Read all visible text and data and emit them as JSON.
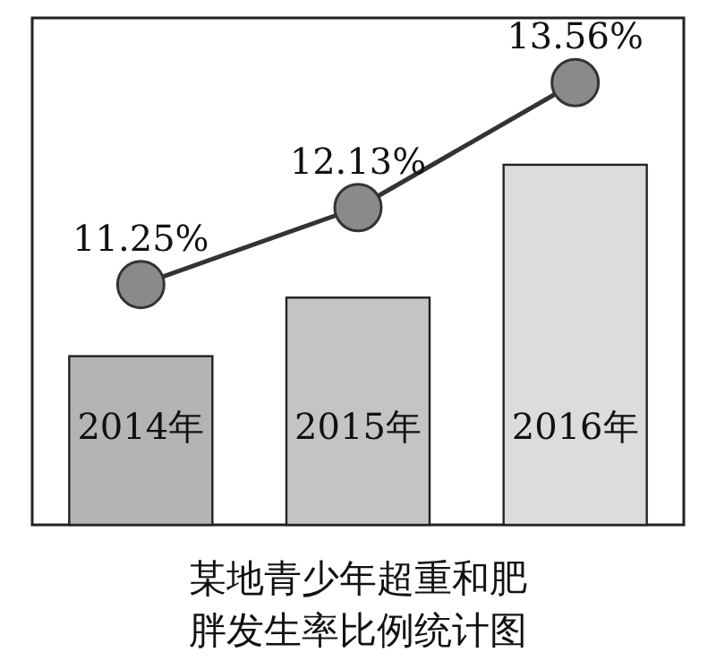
{
  "chart_data": {
    "type": "bar",
    "title": "某地青少年超重和肥胖发生率比例统计图",
    "categories": [
      "2014年",
      "2015年",
      "2016年"
    ],
    "ylim": [
      8.5,
      14.3
    ],
    "series": [
      {
        "colors": [
          "#b4b4b4",
          "#c4c4c4",
          "#dcdcdc"
        ],
        "values": [
          10.43,
          11.1,
          12.62
        ]
      },
      {
        "type": "line",
        "color": "#333333",
        "marker": "circle",
        "values": [
          11.25,
          12.13,
          13.56
        ],
        "value_labels": [
          "11.25%",
          "12.13%",
          "13.56%"
        ]
      }
    ]
  }
}
